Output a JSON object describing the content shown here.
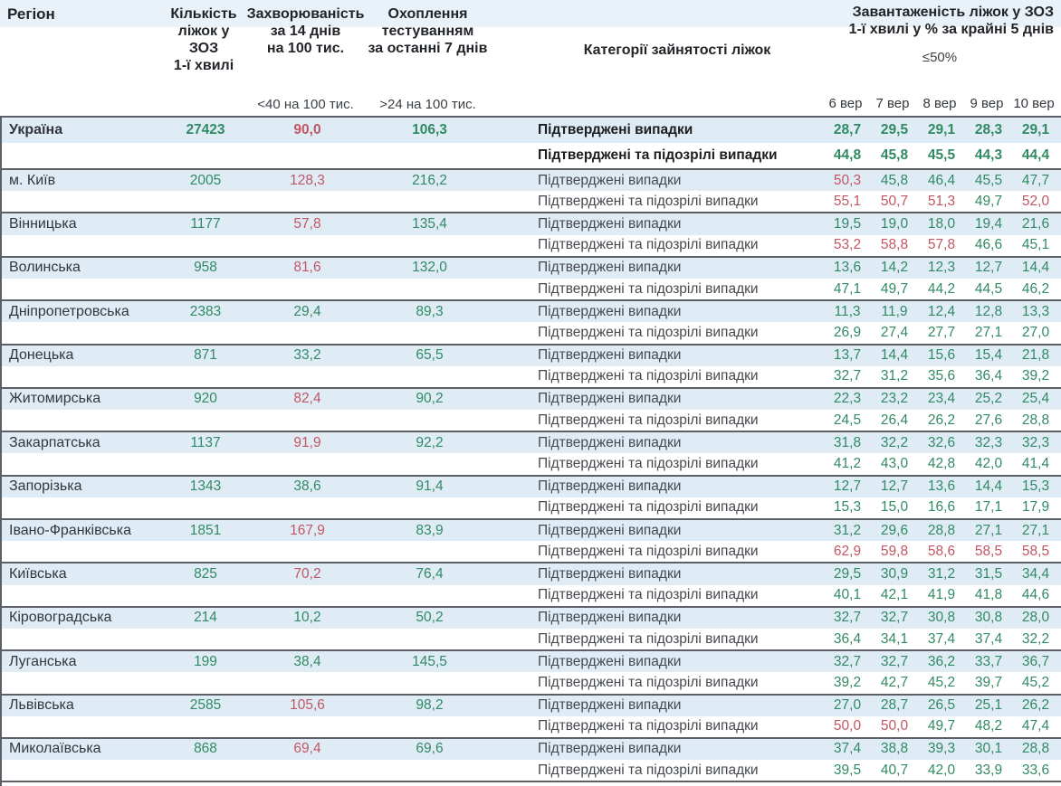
{
  "header": {
    "col_region": "Регіон",
    "col_beds": "Кількість\nліжок у ЗОЗ\n1-ї хвилі",
    "col_incidence": "Захворюваність\nза 14 днів\nна 100 тис.",
    "col_testing": "Охоплення\nтестуванням\nза останні 7 днів",
    "col_categories": "Категорії зайнятості ліжок",
    "col_occupancy": "Завантаженість ліжок у ЗОЗ\n1-ї хвилі у % за крайні 5 днів",
    "incidence_threshold": "<40 на 100 тис.",
    "testing_threshold": ">24 на 100 тис.",
    "occupancy_threshold": "≤50%",
    "dates": [
      "6 вер",
      "7 вер",
      "8 вер",
      "9 вер",
      "10 вер"
    ]
  },
  "categories": {
    "confirmed": "Підтверджені випадки",
    "confirmed_suspected": "Підтверджені та підозрілі випадки"
  },
  "colors": {
    "good": "#318a63",
    "bad": "#c25663",
    "row_highlight": "#dfecf6",
    "header_band": "#e9f2f9"
  },
  "rows": [
    {
      "region": "Україна",
      "bold": true,
      "beds": "27423",
      "beds_c": "g",
      "incidence": "90,0",
      "incidence_c": "r",
      "testing": "106,3",
      "testing_c": "g",
      "confirmed": [
        "28,7",
        "29,5",
        "29,1",
        "28,3",
        "29,1"
      ],
      "confirmed_c": "ggggg",
      "suspected": [
        "44,8",
        "45,8",
        "45,5",
        "44,3",
        "44,4"
      ],
      "suspected_c": "ggggg"
    },
    {
      "region": "м. Київ",
      "bold": false,
      "beds": "2005",
      "beds_c": "g",
      "incidence": "128,3",
      "incidence_c": "r",
      "testing": "216,2",
      "testing_c": "g",
      "confirmed": [
        "50,3",
        "45,8",
        "46,4",
        "45,5",
        "47,7"
      ],
      "confirmed_c": "rgggg",
      "suspected": [
        "55,1",
        "50,7",
        "51,3",
        "49,7",
        "52,0"
      ],
      "suspected_c": "rrrgr"
    },
    {
      "region": "Вінницька",
      "bold": false,
      "beds": "1177",
      "beds_c": "g",
      "incidence": "57,8",
      "incidence_c": "r",
      "testing": "135,4",
      "testing_c": "g",
      "confirmed": [
        "19,5",
        "19,0",
        "18,0",
        "19,4",
        "21,6"
      ],
      "confirmed_c": "ggggg",
      "suspected": [
        "53,2",
        "58,8",
        "57,8",
        "46,6",
        "45,1"
      ],
      "suspected_c": "rrrgg"
    },
    {
      "region": "Волинська",
      "bold": false,
      "beds": "958",
      "beds_c": "g",
      "incidence": "81,6",
      "incidence_c": "r",
      "testing": "132,0",
      "testing_c": "g",
      "confirmed": [
        "13,6",
        "14,2",
        "12,3",
        "12,7",
        "14,4"
      ],
      "confirmed_c": "ggggg",
      "suspected": [
        "47,1",
        "49,7",
        "44,2",
        "44,5",
        "46,2"
      ],
      "suspected_c": "ggggg"
    },
    {
      "region": "Дніпропетровська",
      "bold": false,
      "beds": "2383",
      "beds_c": "g",
      "incidence": "29,4",
      "incidence_c": "g",
      "testing": "89,3",
      "testing_c": "g",
      "confirmed": [
        "11,3",
        "11,9",
        "12,4",
        "12,8",
        "13,3"
      ],
      "confirmed_c": "ggggg",
      "suspected": [
        "26,9",
        "27,4",
        "27,7",
        "27,1",
        "27,0"
      ],
      "suspected_c": "ggggg"
    },
    {
      "region": "Донецька",
      "bold": false,
      "beds": "871",
      "beds_c": "g",
      "incidence": "33,2",
      "incidence_c": "g",
      "testing": "65,5",
      "testing_c": "g",
      "confirmed": [
        "13,7",
        "14,4",
        "15,6",
        "15,4",
        "21,8"
      ],
      "confirmed_c": "ggggg",
      "suspected": [
        "32,7",
        "31,2",
        "35,6",
        "36,4",
        "39,2"
      ],
      "suspected_c": "ggggg"
    },
    {
      "region": "Житомирська",
      "bold": false,
      "beds": "920",
      "beds_c": "g",
      "incidence": "82,4",
      "incidence_c": "r",
      "testing": "90,2",
      "testing_c": "g",
      "confirmed": [
        "22,3",
        "23,2",
        "23,4",
        "25,2",
        "25,4"
      ],
      "confirmed_c": "ggggg",
      "suspected": [
        "24,5",
        "26,4",
        "26,2",
        "27,6",
        "28,8"
      ],
      "suspected_c": "ggggg"
    },
    {
      "region": "Закарпатська",
      "bold": false,
      "beds": "1137",
      "beds_c": "g",
      "incidence": "91,9",
      "incidence_c": "r",
      "testing": "92,2",
      "testing_c": "g",
      "confirmed": [
        "31,8",
        "32,2",
        "32,6",
        "32,3",
        "32,3"
      ],
      "confirmed_c": "ggggg",
      "suspected": [
        "41,2",
        "43,0",
        "42,8",
        "42,0",
        "41,4"
      ],
      "suspected_c": "ggggg"
    },
    {
      "region": "Запорізька",
      "bold": false,
      "beds": "1343",
      "beds_c": "g",
      "incidence": "38,6",
      "incidence_c": "g",
      "testing": "91,4",
      "testing_c": "g",
      "confirmed": [
        "12,7",
        "12,7",
        "13,6",
        "14,4",
        "15,3"
      ],
      "confirmed_c": "ggggg",
      "suspected": [
        "15,3",
        "15,0",
        "16,6",
        "17,1",
        "17,9"
      ],
      "suspected_c": "ggggg"
    },
    {
      "region": "Івано-Франківська",
      "bold": false,
      "beds": "1851",
      "beds_c": "g",
      "incidence": "167,9",
      "incidence_c": "r",
      "testing": "83,9",
      "testing_c": "g",
      "confirmed": [
        "31,2",
        "29,6",
        "28,8",
        "27,1",
        "27,1"
      ],
      "confirmed_c": "ggggg",
      "suspected": [
        "62,9",
        "59,8",
        "58,6",
        "58,5",
        "58,5"
      ],
      "suspected_c": "rrrrr"
    },
    {
      "region": "Київська",
      "bold": false,
      "beds": "825",
      "beds_c": "g",
      "incidence": "70,2",
      "incidence_c": "r",
      "testing": "76,4",
      "testing_c": "g",
      "confirmed": [
        "29,5",
        "30,9",
        "31,2",
        "31,5",
        "34,4"
      ],
      "confirmed_c": "ggggg",
      "suspected": [
        "40,1",
        "42,1",
        "41,9",
        "41,8",
        "44,6"
      ],
      "suspected_c": "ggggg"
    },
    {
      "region": "Кіровоградська",
      "bold": false,
      "beds": "214",
      "beds_c": "g",
      "incidence": "10,2",
      "incidence_c": "g",
      "testing": "50,2",
      "testing_c": "g",
      "confirmed": [
        "32,7",
        "32,7",
        "30,8",
        "30,8",
        "28,0"
      ],
      "confirmed_c": "ggggg",
      "suspected": [
        "36,4",
        "34,1",
        "37,4",
        "37,4",
        "32,2"
      ],
      "suspected_c": "ggggg"
    },
    {
      "region": "Луганська",
      "bold": false,
      "beds": "199",
      "beds_c": "g",
      "incidence": "38,4",
      "incidence_c": "g",
      "testing": "145,5",
      "testing_c": "g",
      "confirmed": [
        "32,7",
        "32,7",
        "36,2",
        "33,7",
        "36,7"
      ],
      "confirmed_c": "ggggg",
      "suspected": [
        "39,2",
        "42,7",
        "45,2",
        "39,7",
        "45,2"
      ],
      "suspected_c": "ggggg"
    },
    {
      "region": "Львівська",
      "bold": false,
      "beds": "2585",
      "beds_c": "g",
      "incidence": "105,6",
      "incidence_c": "r",
      "testing": "98,2",
      "testing_c": "g",
      "confirmed": [
        "27,0",
        "28,7",
        "26,5",
        "25,1",
        "26,2"
      ],
      "confirmed_c": "ggggg",
      "suspected": [
        "50,0",
        "50,0",
        "49,7",
        "48,2",
        "47,4"
      ],
      "suspected_c": "rrggg"
    },
    {
      "region": "Миколаївська",
      "bold": false,
      "beds": "868",
      "beds_c": "g",
      "incidence": "69,4",
      "incidence_c": "r",
      "testing": "69,6",
      "testing_c": "g",
      "confirmed": [
        "37,4",
        "38,8",
        "39,3",
        "30,1",
        "28,8"
      ],
      "confirmed_c": "ggggg",
      "suspected": [
        "39,5",
        "40,7",
        "42,0",
        "33,9",
        "33,6"
      ],
      "suspected_c": "ggggg"
    }
  ]
}
